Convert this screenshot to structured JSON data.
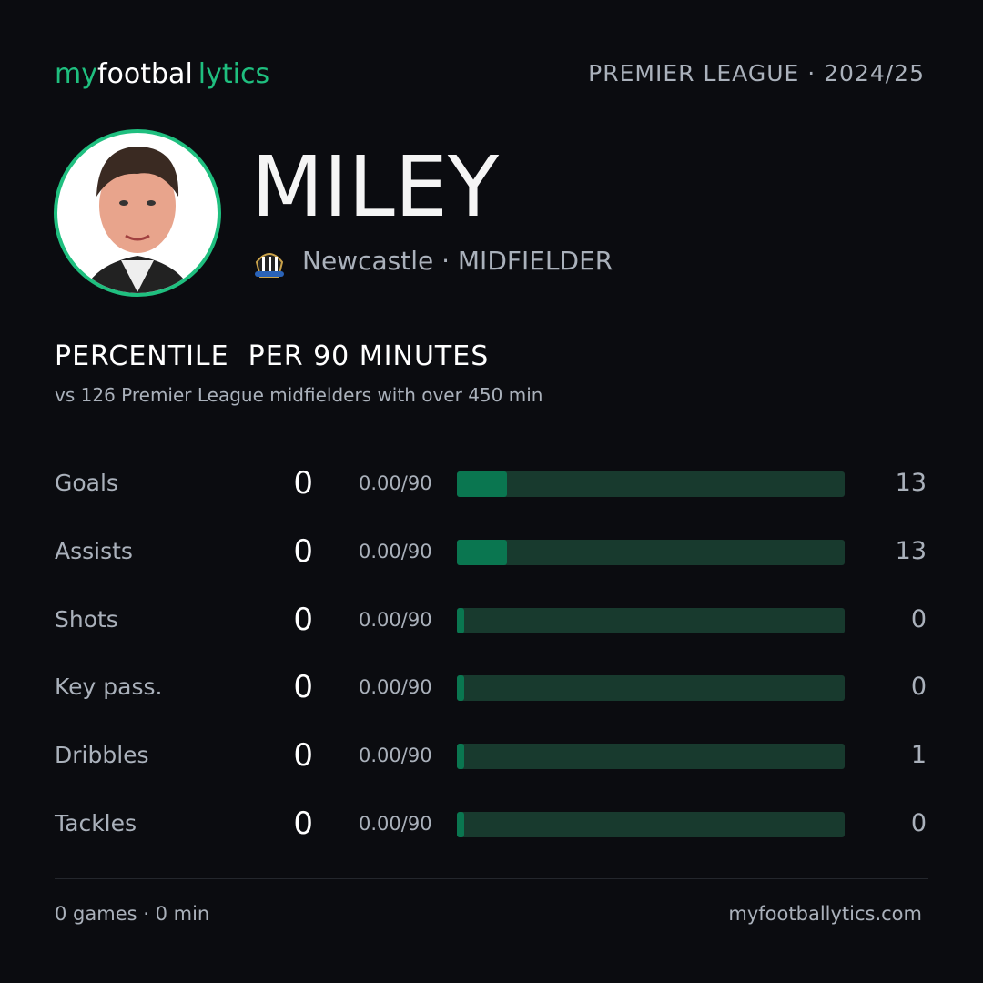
{
  "header": {
    "brand": [
      "my",
      "footbal",
      "lytics"
    ],
    "league": "PREMIER LEAGUE · 2024/25"
  },
  "player": {
    "name": "MILEY",
    "team_position": "Newcastle · MIDFIELDER"
  },
  "section": {
    "title": "PERCENTILE  PER 90 MINUTES",
    "subtitle": "vs 126 Premier League midfielders with over 450 min"
  },
  "stats": {
    "percentile_range": [
      0,
      100
    ],
    "rows": [
      {
        "label": "Goals",
        "total": 0,
        "per90": "0.00/90",
        "percentile": 13
      },
      {
        "label": "Assists",
        "total": 0,
        "per90": "0.00/90",
        "percentile": 13
      },
      {
        "label": "Shots",
        "total": 0,
        "per90": "0.00/90",
        "percentile": 0
      },
      {
        "label": "Key pass.",
        "total": 0,
        "per90": "0.00/90",
        "percentile": 0
      },
      {
        "label": "Dribbles",
        "total": 0,
        "per90": "0.00/90",
        "percentile": 1
      },
      {
        "label": "Tackles",
        "total": 0,
        "per90": "0.00/90",
        "percentile": 0
      }
    ]
  },
  "footer": {
    "summary": "0 games · 0 min",
    "site": "myfootballytics.com"
  }
}
